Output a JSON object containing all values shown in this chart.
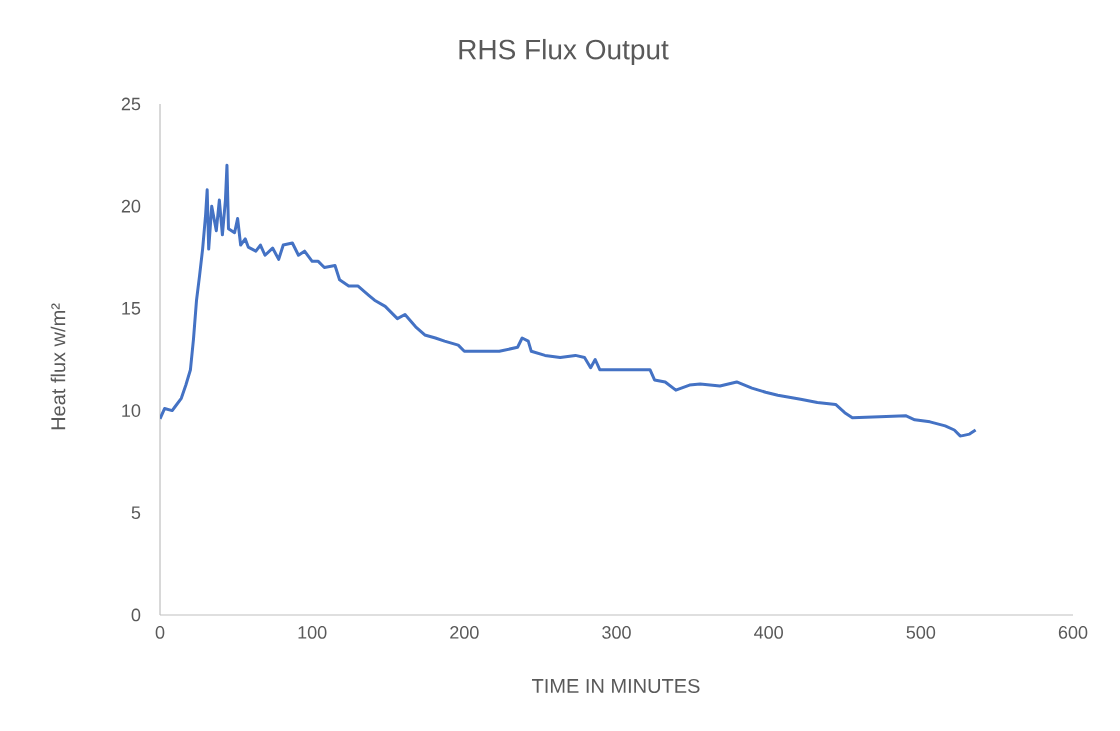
{
  "chart_data": {
    "type": "line",
    "title": "RHS Flux Output",
    "xlabel": "TIME IN MINUTES",
    "ylabel": "Heat flux w/m²",
    "color": "#4472c4",
    "x": [
      0,
      3,
      8,
      10,
      14,
      17,
      20,
      22,
      24,
      26,
      28,
      30,
      31,
      32,
      34,
      37,
      39,
      41,
      43,
      44,
      45,
      49,
      51,
      53,
      56,
      58,
      63,
      66,
      69,
      74,
      78,
      81,
      87,
      91,
      95,
      100,
      104,
      108,
      115,
      118,
      124,
      130,
      137,
      141,
      148,
      156,
      161,
      168,
      174,
      181,
      187,
      196,
      200,
      210,
      223,
      235,
      238,
      242,
      244,
      253,
      263,
      273,
      279,
      283,
      286,
      289,
      322,
      325,
      332,
      339,
      348,
      355,
      368,
      379,
      389,
      398,
      406,
      421,
      432,
      444,
      450,
      455,
      473,
      490,
      496,
      506,
      516,
      522,
      526,
      532,
      536
    ],
    "values": [
      9.6,
      10.1,
      10.0,
      10.2,
      10.6,
      11.25,
      12.0,
      13.5,
      15.4,
      16.6,
      17.9,
      19.6,
      20.8,
      17.9,
      20.0,
      18.8,
      20.3,
      18.6,
      20.3,
      22.0,
      18.9,
      18.7,
      19.4,
      18.1,
      18.4,
      18.0,
      17.8,
      18.1,
      17.6,
      17.95,
      17.4,
      18.1,
      18.2,
      17.6,
      17.8,
      17.3,
      17.3,
      17.0,
      17.1,
      16.4,
      16.1,
      16.1,
      15.65,
      15.4,
      15.1,
      14.5,
      14.7,
      14.1,
      13.7,
      13.55,
      13.4,
      13.2,
      12.9,
      12.9,
      12.9,
      13.1,
      13.55,
      13.4,
      12.9,
      12.7,
      12.6,
      12.7,
      12.6,
      12.1,
      12.5,
      12.0,
      12.0,
      11.5,
      11.4,
      11.0,
      11.25,
      11.3,
      11.2,
      11.4,
      11.1,
      10.9,
      10.75,
      10.55,
      10.4,
      10.3,
      9.9,
      9.65,
      9.7,
      9.75,
      9.55,
      9.45,
      9.25,
      9.05,
      8.75,
      8.85,
      9.05
    ],
    "xlim": [
      0,
      600
    ],
    "ylim": [
      0,
      25
    ],
    "xticks": [
      0,
      100,
      200,
      300,
      400,
      500,
      600
    ],
    "yticks": [
      0,
      5,
      10,
      15,
      20,
      25
    ]
  }
}
